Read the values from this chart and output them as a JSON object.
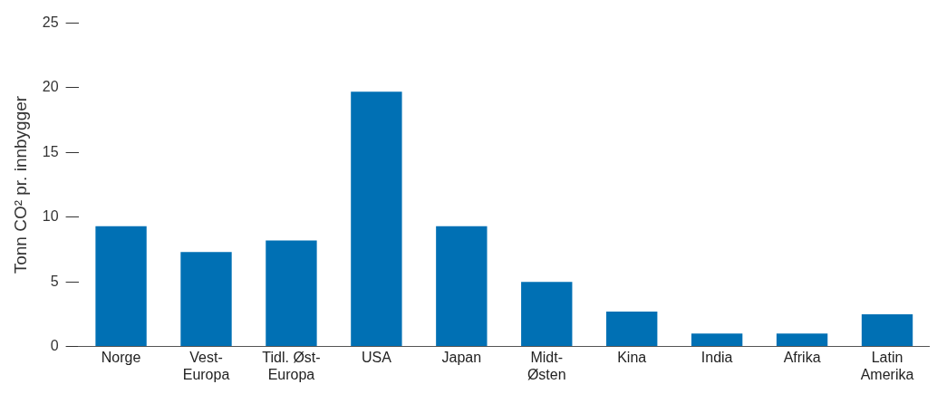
{
  "chart_data": {
    "type": "bar",
    "ylabel": "Tonn CO² pr. innbygger",
    "categories": [
      "Norge",
      "Vest-Europa",
      "Tidl. Øst-Europa",
      "USA",
      "Japan",
      "Midt-Østen",
      "Kina",
      "India",
      "Afrika",
      "Latin Amerika"
    ],
    "values": [
      9.3,
      7.3,
      8.2,
      19.7,
      9.3,
      5.0,
      2.7,
      1.0,
      1.0,
      2.5
    ],
    "color": "#0070b4",
    "ylim": [
      0,
      25
    ],
    "yticks": [
      0,
      5,
      10,
      15,
      20,
      25
    ],
    "grid": false,
    "legend": false
  }
}
